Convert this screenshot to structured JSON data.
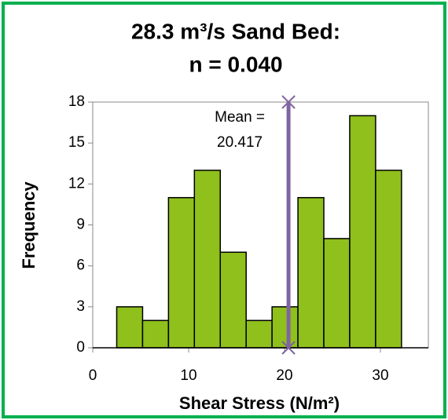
{
  "chart_data": {
    "type": "histogram",
    "title": [
      "28.3 m³/s Sand Bed:",
      "n = 0.040"
    ],
    "xlabel": "Shear Stress (N/m²)",
    "ylabel": "Frequency",
    "bins": [
      2.5,
      5.2,
      7.9,
      10.6,
      13.3,
      16.0,
      18.7,
      21.4,
      24.1,
      26.8,
      29.5,
      32.2
    ],
    "values": [
      3,
      2,
      11,
      13,
      7,
      2,
      3,
      11,
      8,
      17,
      13
    ],
    "color": "#8fc01c",
    "xlim": [
      0,
      35
    ],
    "xticks": [
      0,
      10,
      20,
      30
    ],
    "ylim": [
      0,
      18
    ],
    "yticks": [
      0,
      3,
      6,
      9,
      12,
      15,
      18
    ],
    "mean": 20.417,
    "mean_label": "Mean =",
    "mean_color": "#8064a2"
  }
}
